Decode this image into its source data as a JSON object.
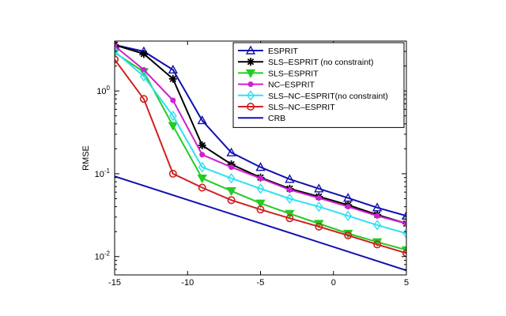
{
  "chart_data": {
    "type": "line",
    "title": "",
    "xlabel": "",
    "ylabel": "RMSE",
    "yscale": "log",
    "xlim": [
      -15,
      5
    ],
    "ylim": [
      0.006,
      4
    ],
    "x_ticks": [
      -15,
      -10,
      -5,
      0,
      5
    ],
    "y_ticks": [
      {
        "value": 0.01,
        "base": "10",
        "exp": "-2"
      },
      {
        "value": 0.1,
        "base": "10",
        "exp": "-1"
      },
      {
        "value": 1,
        "base": "10",
        "exp": "0"
      }
    ],
    "legend_position": "top-right",
    "series": [
      {
        "name": "ESPRIT",
        "color": "#1010b0",
        "marker": "triangle-up",
        "x": [
          -15,
          -13,
          -11,
          -9,
          -7,
          -5,
          -3,
          -1,
          1,
          3,
          5
        ],
        "y": [
          3.6,
          3.0,
          1.8,
          0.44,
          0.18,
          0.12,
          0.086,
          0.066,
          0.051,
          0.039,
          0.031
        ]
      },
      {
        "name": "SLS–ESPRIT (no constraint)",
        "color": "#000000",
        "marker": "star",
        "x": [
          -15,
          -13,
          -11,
          -9,
          -7,
          -5,
          -3,
          -1,
          1,
          3,
          5
        ],
        "y": [
          3.6,
          2.8,
          1.4,
          0.22,
          0.13,
          0.09,
          0.066,
          0.053,
          0.042,
          0.032,
          0.025
        ]
      },
      {
        "name": "SLS–ESPRIT",
        "color": "#22cc22",
        "marker": "triangle-down",
        "x": [
          -15,
          -13,
          -11,
          -9,
          -7,
          -5,
          -3,
          -1,
          1,
          3,
          5
        ],
        "y": [
          2.9,
          1.7,
          0.38,
          0.088,
          0.062,
          0.044,
          0.033,
          0.025,
          0.019,
          0.015,
          0.012
        ]
      },
      {
        "name": "NC–ESPRIT",
        "color": "#d020d0",
        "marker": "dot",
        "x": [
          -15,
          -13,
          -11,
          -9,
          -7,
          -5,
          -3,
          -1,
          1,
          3,
          5
        ],
        "y": [
          3.5,
          1.8,
          0.77,
          0.17,
          0.12,
          0.088,
          0.064,
          0.051,
          0.04,
          0.031,
          0.025
        ]
      },
      {
        "name": "SLS–NC–ESPRIT(no constraint)",
        "color": "#30e0f0",
        "marker": "diamond",
        "x": [
          -15,
          -13,
          -11,
          -9,
          -7,
          -5,
          -3,
          -1,
          1,
          3,
          5
        ],
        "y": [
          3.0,
          1.5,
          0.5,
          0.12,
          0.088,
          0.066,
          0.05,
          0.04,
          0.031,
          0.024,
          0.019
        ]
      },
      {
        "name": "SLS–NC–ESPRIT",
        "color": "#d02020",
        "marker": "circle",
        "x": [
          -15,
          -13,
          -11,
          -9,
          -7,
          -5,
          -3,
          -1,
          1,
          3,
          5
        ],
        "y": [
          2.4,
          0.8,
          0.1,
          0.068,
          0.048,
          0.037,
          0.029,
          0.023,
          0.018,
          0.014,
          0.011
        ]
      },
      {
        "name": "CRB",
        "color": "#1010b0",
        "marker": "none",
        "x": [
          -15,
          5
        ],
        "y": [
          0.093,
          0.0068
        ]
      }
    ]
  }
}
